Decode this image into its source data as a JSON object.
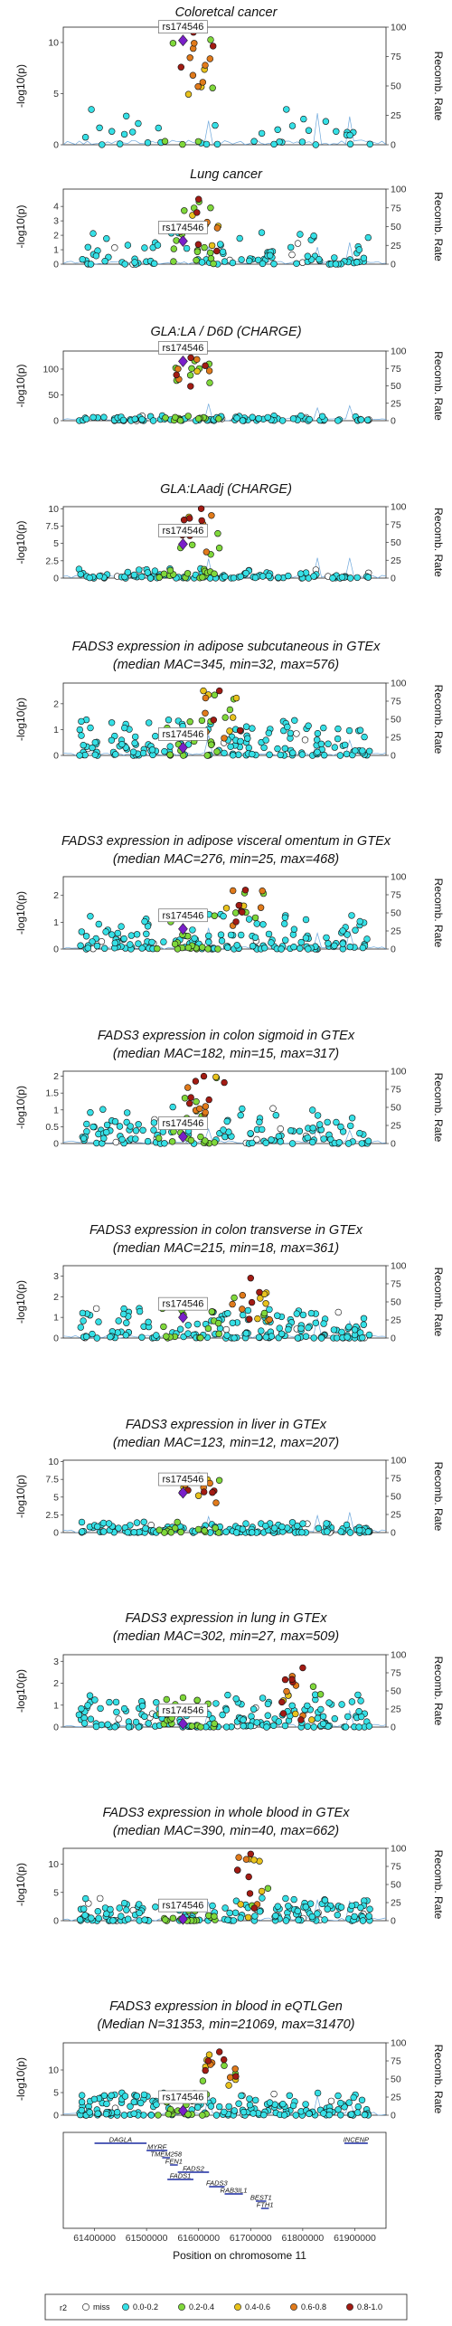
{
  "figure": {
    "xlabel": "Position on chromosome 11",
    "x_ticks": [
      "61400000",
      "61500000",
      "61600000",
      "61700000",
      "61800000",
      "61900000"
    ],
    "lead_snp": "rs174546",
    "legend": {
      "title": "r2",
      "entries": [
        {
          "label": "miss",
          "color": "#ffffff"
        },
        {
          "label": "0.0-0.2",
          "color": "#36e0e6"
        },
        {
          "label": "0.2-0.4",
          "color": "#7fd83b"
        },
        {
          "label": "0.4-0.6",
          "color": "#e8c21c"
        },
        {
          "label": "0.6-0.8",
          "color": "#e07a1b"
        },
        {
          "label": "0.8-1.0",
          "color": "#a21b13"
        }
      ]
    },
    "genes": [
      {
        "name": "DAGLA",
        "start": 61400000,
        "end": 61500000,
        "row": 0
      },
      {
        "name": "INCENP",
        "start": 61880000,
        "end": 61925000,
        "row": 0
      },
      {
        "name": "MYRF",
        "start": 61500000,
        "end": 61540000,
        "row": 1
      },
      {
        "name": "TMEM258",
        "start": 61530000,
        "end": 61545000,
        "row": 2
      },
      {
        "name": "FEN1",
        "start": 61545000,
        "end": 61560000,
        "row": 3
      },
      {
        "name": "FADS2",
        "start": 61560000,
        "end": 61620000,
        "row": 4
      },
      {
        "name": "FADS1",
        "start": 61540000,
        "end": 61590000,
        "row": 5
      },
      {
        "name": "FADS3",
        "start": 61620000,
        "end": 61650000,
        "row": 6
      },
      {
        "name": "RAB3IL1",
        "start": 61650000,
        "end": 61685000,
        "row": 7
      },
      {
        "name": "BEST1",
        "start": 61710000,
        "end": 61730000,
        "row": 8
      },
      {
        "name": "FTH1",
        "start": 61720000,
        "end": 61735000,
        "row": 9
      }
    ]
  },
  "chart_data": [
    {
      "type": "scatter",
      "title": "Coloretcal cancer",
      "ylabel": "-log10(p)",
      "y2label": "Recomb. Rate",
      "ylim": [
        0,
        11.5
      ],
      "yticks": [
        0,
        5,
        10
      ],
      "y2ticks": [
        0,
        25,
        50,
        75,
        100
      ],
      "xlim": [
        61340000,
        61960000
      ],
      "lead": [
        61570000,
        10.2
      ],
      "peak": [
        61590000,
        11.0,
        4.5,
        1
      ],
      "cloud": [
        40,
        3.5
      ]
    },
    {
      "type": "scatter",
      "title": "Lung cancer",
      "ylabel": "-log10(p)",
      "y2label": "Recomb. Rate",
      "ylim": [
        0,
        5.2
      ],
      "yticks": [
        0,
        1,
        2,
        3,
        4
      ],
      "y2ticks": [
        0,
        25,
        50,
        75,
        100
      ],
      "xlim": [
        61340000,
        61960000
      ],
      "lead": [
        61570000,
        1.6
      ],
      "peak": [
        61600000,
        4.5,
        0.8,
        2
      ],
      "cloud": [
        110,
        2.2
      ]
    },
    {
      "type": "scatter",
      "title": "GLA:LA / D6D (CHARGE)",
      "ylabel": "-log10(p)",
      "y2label": "Recomb. Rate",
      "ylim": [
        0,
        135
      ],
      "yticks": [
        0,
        50,
        100
      ],
      "y2ticks": [
        0,
        25,
        50,
        75,
        100
      ],
      "xlim": [
        61340000,
        61960000
      ],
      "lead": [
        61570000,
        115
      ],
      "peak": [
        61585000,
        122,
        65,
        3
      ],
      "cloud": [
        110,
        10
      ]
    },
    {
      "type": "scatter",
      "title": "GLA:LAadj (CHARGE)",
      "ylabel": "-log10(p)",
      "y2label": "Recomb. Rate",
      "ylim": [
        0,
        10.3
      ],
      "yticks": [
        0,
        2.5,
        5.0,
        7.5,
        10.0
      ],
      "y2ticks": [
        0,
        25,
        50,
        75,
        100
      ],
      "xlim": [
        61340000,
        61960000
      ],
      "lead": [
        61570000,
        4.9
      ],
      "peak": [
        61605000,
        10.0,
        3.2,
        4
      ],
      "cloud": [
        120,
        1.4
      ]
    },
    {
      "type": "scatter",
      "title": "FADS3 expression in adipose subcutaneous in GTEx",
      "subtitle": "(median MAC=345, min=32, max=576)",
      "ylabel": "-log10(p)",
      "y2label": "Recomb. Rate",
      "ylim": [
        0,
        2.8
      ],
      "yticks": [
        0,
        1,
        2
      ],
      "y2ticks": [
        0,
        25,
        50,
        75,
        100
      ],
      "xlim": [
        61340000,
        61960000
      ],
      "lead": [
        61570000,
        0.3
      ],
      "peak": [
        61640000,
        2.5,
        0.6,
        5
      ],
      "cloud": [
        170,
        1.4
      ]
    },
    {
      "type": "scatter",
      "title": "FADS3 expression in adipose visceral omentum in GTEx",
      "subtitle": "(median MAC=276, min=25, max=468)",
      "ylabel": "-log10(p)",
      "y2label": "Recomb. Rate",
      "ylim": [
        0,
        2.7
      ],
      "yticks": [
        0,
        1,
        2
      ],
      "y2ticks": [
        0,
        25,
        50,
        75,
        100
      ],
      "xlim": [
        61340000,
        61960000
      ],
      "lead": [
        61570000,
        0.75
      ],
      "peak": [
        61690000,
        2.2,
        0.6,
        6
      ],
      "cloud": [
        170,
        1.3
      ]
    },
    {
      "type": "scatter",
      "title": "FADS3 expression in colon sigmoid in GTEx",
      "subtitle": "(median MAC=182, min=15, max=317)",
      "ylabel": "-log10(p)",
      "y2label": "Recomb. Rate",
      "ylim": [
        0,
        2.15
      ],
      "yticks": [
        0,
        0.5,
        1.0,
        1.5,
        2.0
      ],
      "y2ticks": [
        0,
        25,
        50,
        75,
        100
      ],
      "xlim": [
        61340000,
        61960000
      ],
      "lead": [
        61570000,
        0.2
      ],
      "peak": [
        61610000,
        2.0,
        0.5,
        7
      ],
      "cloud": [
        140,
        1.1
      ]
    },
    {
      "type": "scatter",
      "title": "FADS3 expression in colon transverse in GTEx",
      "subtitle": "(median MAC=215, min=18, max=361)",
      "ylabel": "-log10(p)",
      "y2label": "Recomb. Rate",
      "ylim": [
        0,
        3.5
      ],
      "yticks": [
        0,
        1,
        2,
        3
      ],
      "y2ticks": [
        0,
        25,
        50,
        75,
        100
      ],
      "xlim": [
        61340000,
        61960000
      ],
      "lead": [
        61570000,
        1.0
      ],
      "peak": [
        61700000,
        2.9,
        0.8,
        8
      ],
      "cloud": [
        170,
        1.5
      ]
    },
    {
      "type": "scatter",
      "title": "FADS3 expression in liver in GTEx",
      "subtitle": "(median MAC=123, min=12, max=207)",
      "ylabel": "-log10(p)",
      "y2label": "Recomb. Rate",
      "ylim": [
        0,
        10.2
      ],
      "yticks": [
        0,
        2.5,
        5.0,
        7.5,
        10.0
      ],
      "y2ticks": [
        0,
        25,
        50,
        75,
        100
      ],
      "xlim": [
        61340000,
        61960000
      ],
      "lead": [
        61570000,
        5.6
      ],
      "peak": [
        61600000,
        8.0,
        3.5,
        9
      ],
      "cloud": [
        150,
        1.5
      ]
    },
    {
      "type": "scatter",
      "title": "FADS3 expression in lung in GTEx",
      "subtitle": "(median MAC=302, min=27, max=509)",
      "ylabel": "-log10(p)",
      "y2label": "Recomb. Rate",
      "ylim": [
        0,
        3.3
      ],
      "yticks": [
        0,
        1,
        2,
        3
      ],
      "y2ticks": [
        0,
        25,
        50,
        75,
        100
      ],
      "xlim": [
        61340000,
        61960000
      ],
      "lead": [
        61570000,
        0.15
      ],
      "peak": [
        61800000,
        2.7,
        0.3,
        10
      ],
      "cloud": [
        180,
        1.5
      ]
    },
    {
      "type": "scatter",
      "title": "FADS3 expression in whole blood in GTEx",
      "subtitle": "(median MAC=390, min=40, max=662)",
      "ylabel": "-log10(p)",
      "y2label": "Recomb. Rate",
      "ylim": [
        0,
        12.8
      ],
      "yticks": [
        0,
        5,
        10
      ],
      "y2ticks": [
        0,
        25,
        50,
        75,
        100
      ],
      "xlim": [
        61340000,
        61960000
      ],
      "lead": [
        61570000,
        0.3
      ],
      "peak": [
        61700000,
        11.8,
        0.5,
        11
      ],
      "cloud": [
        170,
        4
      ]
    },
    {
      "type": "scatter",
      "title": "FADS3 expression in blood in eQTLGen",
      "subtitle": "(Median N=31353, min=21069, max=31470)",
      "ylabel": "-log10(p)",
      "y2label": "Recomb. Rate",
      "ylim": [
        0,
        16
      ],
      "yticks": [
        0,
        5,
        10
      ],
      "y2ticks": [
        0,
        25,
        50,
        75,
        100
      ],
      "xlim": [
        61340000,
        61960000
      ],
      "lead": [
        61570000,
        1.0
      ],
      "peak": [
        61640000,
        14.0,
        6,
        12
      ],
      "cloud": [
        190,
        5
      ]
    }
  ]
}
